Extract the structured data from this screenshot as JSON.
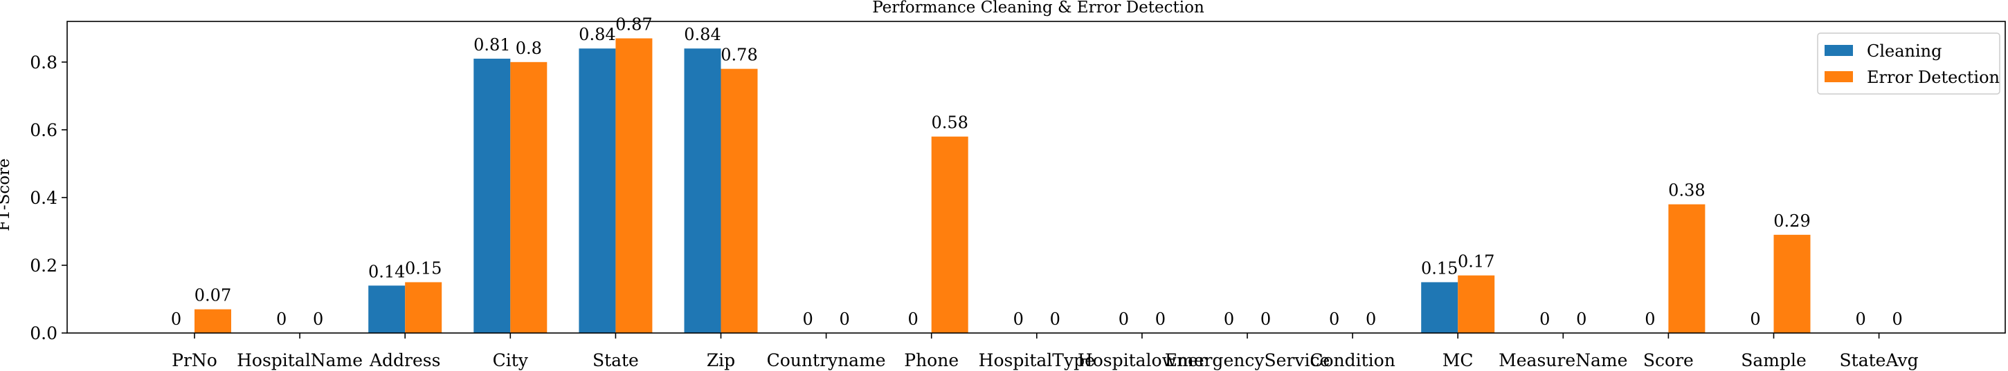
{
  "chart_data": {
    "type": "bar",
    "title": "Performance Cleaning & Error Detection",
    "xlabel": "",
    "ylabel": "F1-Score",
    "ylim": [
      0,
      0.92
    ],
    "yticks": [
      "0.0",
      "0.2",
      "0.4",
      "0.6",
      "0.8"
    ],
    "legend_position": "top-right",
    "categories": [
      "PrNo",
      "HospitalName",
      "Address",
      "City",
      "State",
      "Zip",
      "Countryname",
      "Phone",
      "HospitalType",
      "Hospitalowner",
      "EmergencyService",
      "Condition",
      "MC",
      "MeasureName",
      "Score",
      "Sample",
      "StateAvg"
    ],
    "series": [
      {
        "name": "Cleaning",
        "color": "#1f77b4",
        "values": [
          0,
          0,
          0.14,
          0.81,
          0.84,
          0.84,
          0,
          0,
          0,
          0,
          0,
          0,
          0.15,
          0,
          0,
          0,
          0
        ],
        "labels": [
          "0",
          "0",
          "0.14",
          "0.81",
          "0.84",
          "0.84",
          "0",
          "0",
          "0",
          "0",
          "0",
          "0",
          "0.15",
          "0",
          "0",
          "0",
          "0"
        ]
      },
      {
        "name": "Error Detection",
        "color": "#ff7f0e",
        "values": [
          0.07,
          0,
          0.15,
          0.8,
          0.87,
          0.78,
          0,
          0.58,
          0,
          0,
          0,
          0,
          0.17,
          0,
          0.38,
          0.29,
          0
        ],
        "labels": [
          "0.07",
          "0",
          "0.15",
          "0.8",
          "0.87",
          "0.78",
          "0",
          "0.58",
          "0",
          "0",
          "0",
          "0",
          "0.17",
          "0",
          "0.38",
          "0.29",
          "0"
        ]
      }
    ]
  }
}
